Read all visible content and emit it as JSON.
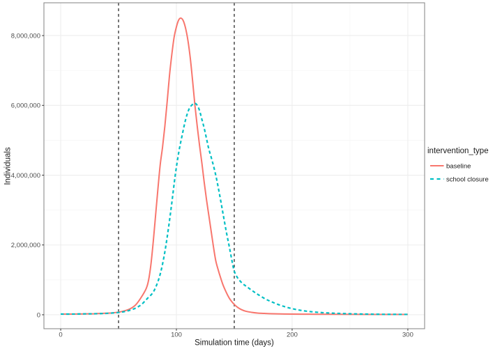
{
  "chart_data": {
    "type": "line",
    "title": "",
    "xlabel": "Simulation time (days)",
    "ylabel": "Individuals",
    "grid": true,
    "legend_position": "right",
    "xlim": [
      -14.5,
      314.5
    ],
    "ylim": [
      -400000,
      8940000
    ],
    "x_ticks": {
      "values": [
        0,
        100,
        200,
        300
      ],
      "labels": [
        "0",
        "100",
        "200",
        "300"
      ]
    },
    "x_minor": [
      50,
      150,
      250
    ],
    "y_ticks": {
      "values": [
        0,
        2000000,
        4000000,
        6000000,
        8000000
      ],
      "labels": [
        "0",
        "2,000,000",
        "4,000,000",
        "6,000,000",
        "8,000,000"
      ]
    },
    "y_minor": [
      1000000,
      3000000,
      5000000,
      7000000
    ],
    "vlines": [
      {
        "x": 50
      },
      {
        "x": 150
      }
    ],
    "series": [
      {
        "name": "baseline",
        "color": "#F8766D",
        "dash": "solid",
        "points": [
          [
            0,
            20000
          ],
          [
            10,
            20000
          ],
          [
            20,
            25000
          ],
          [
            30,
            30000
          ],
          [
            40,
            45000
          ],
          [
            45,
            55000
          ],
          [
            50,
            75000
          ],
          [
            55,
            110000
          ],
          [
            60,
            170000
          ],
          [
            65,
            290000
          ],
          [
            70,
            520000
          ],
          [
            74,
            760000
          ],
          [
            76,
            1000000
          ],
          [
            78,
            1450000
          ],
          [
            80,
            2100000
          ],
          [
            82,
            2850000
          ],
          [
            84,
            3600000
          ],
          [
            86,
            4300000
          ],
          [
            88,
            4800000
          ],
          [
            90,
            5400000
          ],
          [
            92,
            6100000
          ],
          [
            94,
            6850000
          ],
          [
            96,
            7450000
          ],
          [
            98,
            7950000
          ],
          [
            100,
            8250000
          ],
          [
            102,
            8450000
          ],
          [
            104,
            8500000
          ],
          [
            106,
            8420000
          ],
          [
            108,
            8200000
          ],
          [
            110,
            7850000
          ],
          [
            112,
            7350000
          ],
          [
            114,
            6700000
          ],
          [
            116,
            6000000
          ],
          [
            118,
            5400000
          ],
          [
            120,
            4850000
          ],
          [
            122,
            4350000
          ],
          [
            124,
            3800000
          ],
          [
            126,
            3300000
          ],
          [
            128,
            2850000
          ],
          [
            130,
            2400000
          ],
          [
            132,
            1950000
          ],
          [
            134,
            1550000
          ],
          [
            136,
            1300000
          ],
          [
            138,
            1080000
          ],
          [
            140,
            880000
          ],
          [
            142,
            720000
          ],
          [
            144,
            580000
          ],
          [
            146,
            460000
          ],
          [
            148,
            370000
          ],
          [
            150,
            295000
          ],
          [
            153,
            210000
          ],
          [
            156,
            150000
          ],
          [
            160,
            100000
          ],
          [
            165,
            70000
          ],
          [
            170,
            50000
          ],
          [
            175,
            40000
          ],
          [
            180,
            32000
          ],
          [
            190,
            24000
          ],
          [
            200,
            20000
          ],
          [
            215,
            16000
          ],
          [
            230,
            13000
          ],
          [
            250,
            11000
          ],
          [
            275,
            10000
          ],
          [
            300,
            10000
          ]
        ]
      },
      {
        "name": "school closure",
        "color": "#00BFC4",
        "dash": "dashed",
        "points": [
          [
            0,
            20000
          ],
          [
            10,
            20000
          ],
          [
            20,
            25000
          ],
          [
            30,
            30000
          ],
          [
            40,
            40000
          ],
          [
            50,
            65000
          ],
          [
            55,
            90000
          ],
          [
            60,
            130000
          ],
          [
            65,
            195000
          ],
          [
            70,
            300000
          ],
          [
            75,
            470000
          ],
          [
            80,
            650000
          ],
          [
            84,
            950000
          ],
          [
            87,
            1300000
          ],
          [
            90,
            1800000
          ],
          [
            93,
            2450000
          ],
          [
            96,
            3200000
          ],
          [
            99,
            4000000
          ],
          [
            102,
            4650000
          ],
          [
            105,
            5150000
          ],
          [
            108,
            5600000
          ],
          [
            111,
            5900000
          ],
          [
            114,
            6030000
          ],
          [
            116,
            6060000
          ],
          [
            118,
            6000000
          ],
          [
            120,
            5850000
          ],
          [
            122,
            5600000
          ],
          [
            124,
            5350000
          ],
          [
            126,
            5050000
          ],
          [
            128,
            4750000
          ],
          [
            131,
            4400000
          ],
          [
            134,
            4000000
          ],
          [
            137,
            3500000
          ],
          [
            140,
            2950000
          ],
          [
            143,
            2400000
          ],
          [
            146,
            1900000
          ],
          [
            148,
            1550000
          ],
          [
            150,
            1250000
          ],
          [
            153,
            1050000
          ],
          [
            157,
            900000
          ],
          [
            161,
            800000
          ],
          [
            166,
            680000
          ],
          [
            171,
            570000
          ],
          [
            177,
            450000
          ],
          [
            183,
            360000
          ],
          [
            190,
            270000
          ],
          [
            197,
            200000
          ],
          [
            205,
            140000
          ],
          [
            213,
            100000
          ],
          [
            222,
            70000
          ],
          [
            232,
            50000
          ],
          [
            243,
            35000
          ],
          [
            255,
            24000
          ],
          [
            268,
            17000
          ],
          [
            282,
            12000
          ],
          [
            300,
            10000
          ]
        ]
      }
    ]
  },
  "legend": {
    "title": "intervention_type",
    "items": [
      {
        "label": "baseline",
        "color": "#F8766D",
        "dash": "solid"
      },
      {
        "label": "school closure",
        "color": "#00BFC4",
        "dash": "dashed"
      }
    ]
  },
  "colors": {
    "background": "#FFFFFF",
    "panel_border": "#8C8C8C",
    "grid_major": "#EDEDED",
    "grid_minor": "#F5F5F5",
    "tick_mark": "#333333",
    "tick_text": "#4D4D4D",
    "vline": "#3C3C3C",
    "baseline_series": "#F8766D",
    "school_closure_series": "#00BFC4"
  }
}
